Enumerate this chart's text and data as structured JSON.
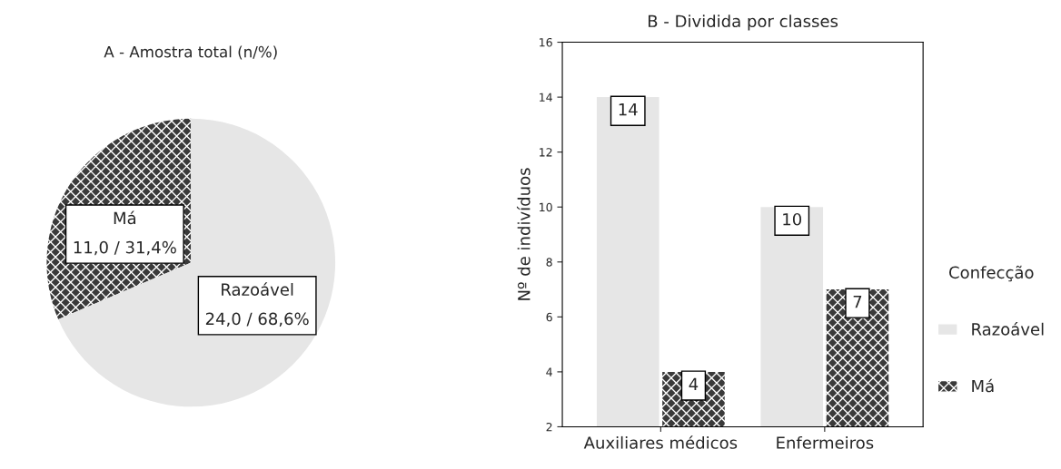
{
  "chart_data": [
    {
      "type": "pie",
      "title": "A - Amostra total (n/%)",
      "categories": [
        "Má",
        "Razoável"
      ],
      "values": [
        11.0,
        24.0
      ],
      "colors": [
        "#3a3a3a",
        "#e6e6e6"
      ],
      "value_labels": [
        "11,0 / 31,4%",
        "24,0 / 68,6%"
      ]
    },
    {
      "type": "bar",
      "title": "B - Dividida por classes",
      "ylabel": "Nº de indivíduos",
      "categories": [
        "Auxiliares médicos",
        "Enfermeiros"
      ],
      "series": [
        {
          "name": "Razoável",
          "color": "#e6e6e6",
          "values": [
            14,
            10
          ]
        },
        {
          "name": "Má",
          "color": "#3a3a3a",
          "values": [
            4,
            7
          ]
        }
      ],
      "ylim": [
        2,
        16
      ],
      "yticks": [
        2,
        4,
        6,
        8,
        10,
        12,
        14,
        16
      ],
      "legend": "right",
      "legend_title": "Confecção",
      "data_labels": true,
      "grid": false
    }
  ]
}
